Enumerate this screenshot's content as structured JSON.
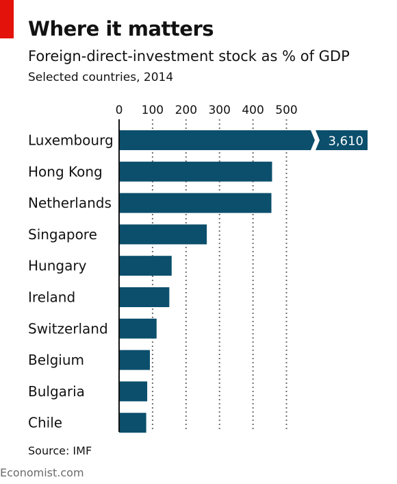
{
  "header": {
    "title": "Where it matters",
    "subtitle": "Foreign-direct-investment stock as % of GDP",
    "subsubtitle": "Selected countries, 2014"
  },
  "footer": {
    "source": "Source: IMF",
    "brand": "Economist.com"
  },
  "colors": {
    "bar": "#0b4f6c",
    "accent_tag": "#e3120b",
    "grid": "#6d6d6d",
    "axis": "#121212"
  },
  "chart_data": {
    "type": "bar",
    "orientation": "horizontal",
    "title": "Where it matters",
    "subtitle": "Foreign-direct-investment stock as % of GDP",
    "categories": [
      "Luxembourg",
      "Hong Kong",
      "Netherlands",
      "Singapore",
      "Hungary",
      "Ireland",
      "Switzerland",
      "Belgium",
      "Bulgaria",
      "Chile"
    ],
    "values": [
      3610,
      457,
      455,
      262,
      157,
      150,
      112,
      92,
      84,
      81
    ],
    "data_labels": [
      "3,610",
      "",
      "",
      "",
      "",
      "",
      "",
      "",
      "",
      ""
    ],
    "xticks": [
      0,
      100,
      200,
      300,
      400,
      500
    ],
    "xtick_labels": [
      "0",
      "100",
      "200",
      "300",
      "400",
      "500"
    ],
    "xlim": [
      0,
      500
    ],
    "axis_break": "Luxembourg bar truncated",
    "grid": "vertical dotted",
    "xlabel": "",
    "ylabel": ""
  }
}
